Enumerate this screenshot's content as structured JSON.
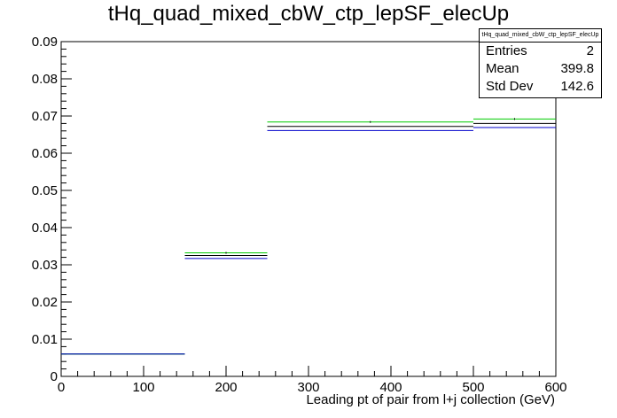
{
  "title": "tHq_quad_mixed_cbW_ctp_lepSF_elecUp",
  "statbox": {
    "title": "tHq_quad_mixed_cbW_ctp_lepSF_elecUp",
    "entries_label": "Entries",
    "entries_value": "2",
    "mean_label": "Mean",
    "mean_value": "399.8",
    "stddev_label": "Std Dev",
    "stddev_value": "142.6"
  },
  "chart_data": {
    "type": "histogram",
    "title": "tHq_quad_mixed_cbW_ctp_lepSF_elecUp",
    "xlabel": "Leading pt of pair from l+j collection (GeV)",
    "ylabel": "",
    "xlim": [
      0,
      600
    ],
    "ylim": [
      0,
      0.09
    ],
    "x_ticks": [
      "0",
      "100",
      "200",
      "300",
      "400",
      "500",
      "600"
    ],
    "y_ticks": [
      "0",
      "0.01",
      "0.02",
      "0.03",
      "0.04",
      "0.05",
      "0.06",
      "0.07",
      "0.08",
      "0.09"
    ],
    "bin_edges": [
      0,
      150,
      250,
      500,
      600
    ],
    "series": [
      {
        "color": "#000000",
        "values": [
          0.006,
          0.0325,
          0.0672,
          0.068
        ]
      },
      {
        "color": "#00cc00",
        "values": [
          0.006,
          0.0332,
          0.0684,
          0.0692
        ]
      },
      {
        "color": "#0000cc",
        "values": [
          0.006,
          0.0317,
          0.0661,
          0.0669
        ]
      }
    ],
    "error_markers": [
      {
        "x": 375,
        "y": 0.0684
      },
      {
        "x": 550,
        "y": 0.0692
      },
      {
        "x": 200,
        "y": 0.0332
      }
    ]
  }
}
